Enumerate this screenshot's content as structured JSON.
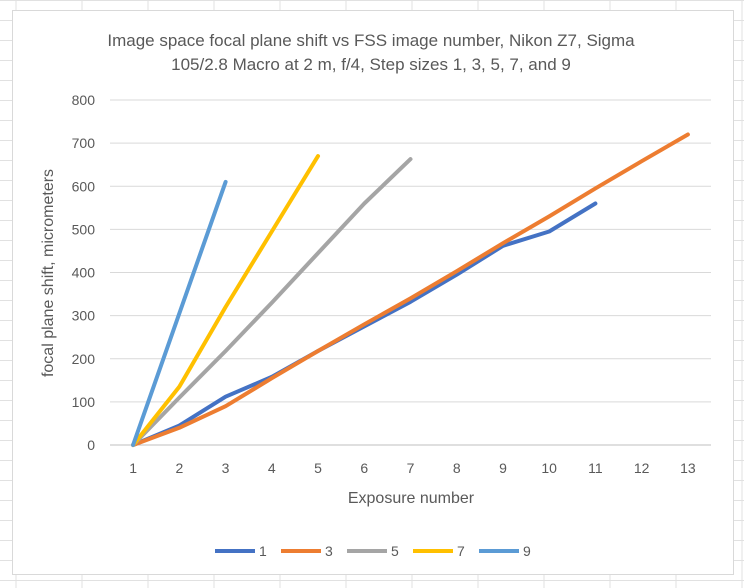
{
  "chart_data": {
    "type": "line",
    "title_lines": [
      "Image space focal plane shift vs FSS image number, Nikon Z7, Sigma",
      "105/2.8 Macro at 2 m, f/4, Step sizes 1, 3, 5, 7, and 9"
    ],
    "xlabel": "Exposure number",
    "ylabel": "focal plane shift, micrometers",
    "x_ticks": [
      1,
      2,
      3,
      4,
      5,
      6,
      7,
      8,
      9,
      10,
      11,
      12,
      13
    ],
    "y_ticks": [
      0,
      100,
      200,
      300,
      400,
      500,
      600,
      700,
      800
    ],
    "xlim": [
      0.5,
      13.5
    ],
    "ylim": [
      0,
      800
    ],
    "grid": "horizontal",
    "legend_position": "bottom",
    "series": [
      {
        "name": "1",
        "color": "#4472C4",
        "x": [
          1,
          2,
          3,
          4,
          5,
          6,
          7,
          8,
          9,
          10,
          11
        ],
        "y": [
          0,
          45,
          112,
          158,
          218,
          275,
          332,
          395,
          462,
          495,
          560
        ]
      },
      {
        "name": "3",
        "color": "#ED7D31",
        "x": [
          1,
          2,
          3,
          4,
          5,
          6,
          7,
          8,
          9,
          10,
          11,
          12,
          13
        ],
        "y": [
          0,
          40,
          90,
          155,
          218,
          280,
          340,
          403,
          468,
          530,
          595,
          658,
          720
        ]
      },
      {
        "name": "5",
        "color": "#A5A5A5",
        "x": [
          1,
          2,
          3,
          4,
          5,
          6,
          7
        ],
        "y": [
          0,
          110,
          218,
          330,
          445,
          560,
          663
        ]
      },
      {
        "name": "7",
        "color": "#FFC000",
        "x": [
          1,
          2,
          3,
          4,
          5
        ],
        "y": [
          0,
          135,
          320,
          495,
          670
        ]
      },
      {
        "name": "9",
        "color": "#5B9BD5",
        "x": [
          1,
          2,
          3
        ],
        "y": [
          0,
          305,
          610
        ]
      }
    ]
  }
}
